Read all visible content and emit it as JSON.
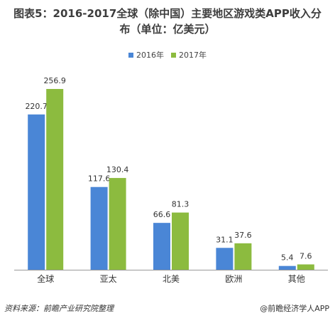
{
  "colors": {
    "s2016": "#4a86d6",
    "s2017": "#8cbb3f"
  },
  "title_line1": "图表5：2016-2017全球（除中国）主要地区游戏类APP收入分",
  "title_line2": "布（单位：亿美元）",
  "source": "资料来源：前瞻产业研究院整理",
  "brand": "@前瞻经济学人APP",
  "chart_data": {
    "type": "bar",
    "categories": [
      "全球",
      "亚太",
      "北美",
      "欧洲",
      "其他"
    ],
    "series": [
      {
        "name": "2016年",
        "values": [
          220.7,
          117.6,
          66.6,
          31.1,
          5.4
        ]
      },
      {
        "name": "2017年",
        "values": [
          256.9,
          130.4,
          81.3,
          37.6,
          7.6
        ]
      }
    ],
    "ylim": [
      0,
      300
    ],
    "grid": false,
    "legend_position": "top-center"
  }
}
